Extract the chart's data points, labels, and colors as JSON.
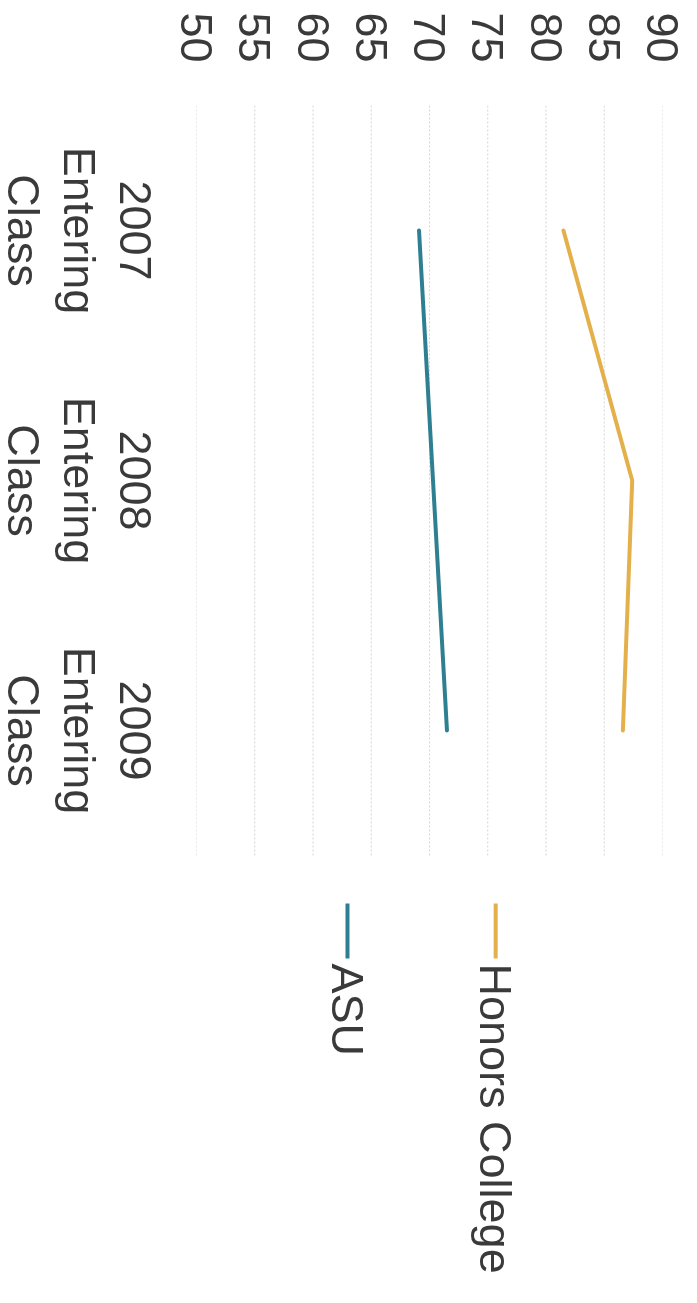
{
  "chart_data": {
    "type": "line",
    "orientation": "horizontal",
    "categories": [
      "2007 Entering Class",
      "2008 Entering Class",
      "2009 Entering Class"
    ],
    "series": [
      {
        "name": "Honors College",
        "color": "#e3b04b",
        "values": [
          81.5,
          87.4,
          86.6
        ]
      },
      {
        "name": "ASU",
        "color": "#2f7f93",
        "values": [
          69.1,
          70.3,
          71.5
        ]
      }
    ],
    "xlim": [
      50,
      90
    ],
    "xticks": [
      50,
      55,
      60,
      65,
      70,
      75,
      80,
      85,
      90
    ],
    "grid": "x",
    "legend": "bottom",
    "line_style": "solid"
  }
}
